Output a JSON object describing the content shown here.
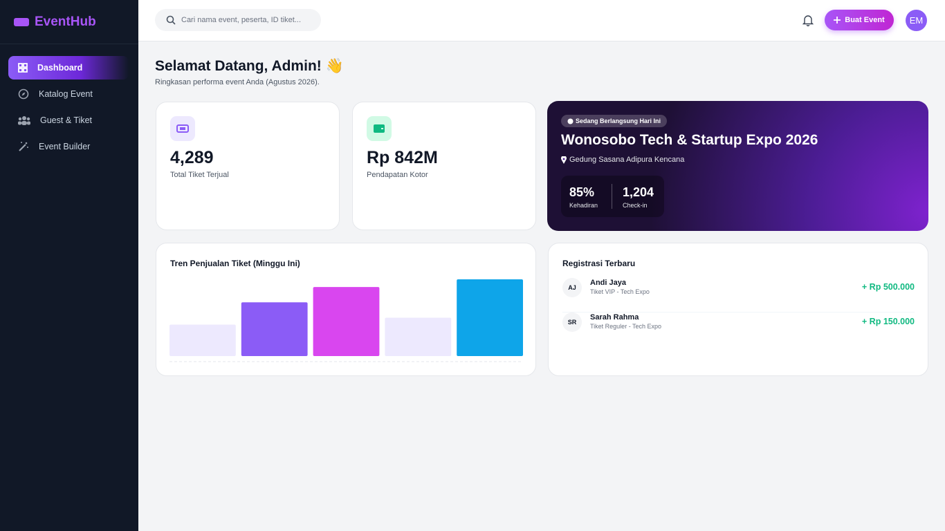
{
  "sidebar": {
    "brand": "EventHub",
    "nav": [
      "Dashboard",
      "Katalog Event",
      "Guest & Tiket",
      "Event Builder"
    ]
  },
  "topbar": {
    "search_placeholder": "Cari nama event, peserta, ID tiket...",
    "button": "Buat Event",
    "avatar": "EM"
  },
  "greeting": {
    "title": "Selamat Datang, Admin! 👋",
    "subtitle": "Ringkasan performa event Anda (Agustus 2026)."
  },
  "stats": [
    {
      "value": "4,289",
      "label": "Total Tiket Terjual"
    },
    {
      "value": "Rp 842M",
      "label": "Pendapatan Kotor"
    }
  ],
  "featured": {
    "badge": "Sedang Berlangsung Hari Ini",
    "title": "Wonosobo Tech & Startup Expo 2026",
    "location": "Gedung Sasana Adipura Kencana",
    "stats": [
      {
        "value": "85%",
        "label": "Kehadiran"
      },
      {
        "value": "1,204",
        "label": "Check-in"
      }
    ]
  },
  "chart_data": {
    "type": "bar",
    "title": "Tren Penjualan Tiket (Minggu Ini)",
    "values": [
      41,
      70,
      90,
      50,
      100
    ],
    "colors": [
      "#ede9fe",
      "#8b5cf6",
      "#d946ef",
      "#ede9fe",
      "#0ea5e9"
    ],
    "ylim": [
      0,
      100
    ]
  },
  "registrations": {
    "title": "Registrasi Terbaru",
    "items": [
      {
        "initials": "AJ",
        "name": "Andi Jaya",
        "ticket": "Tiket VIP - Tech Expo",
        "amount": "+ Rp 500.000"
      },
      {
        "initials": "SR",
        "name": "Sarah Rahma",
        "ticket": "Tiket Reguler - Tech Expo",
        "amount": "+ Rp 150.000"
      }
    ]
  }
}
